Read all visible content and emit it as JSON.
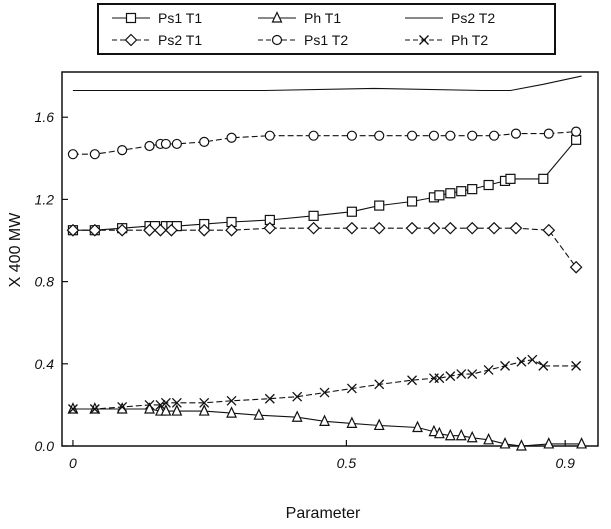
{
  "chart_data": {
    "type": "line",
    "title": "",
    "xlabel": "Parameter",
    "ylabel": "X 400 MW",
    "xlim": [
      -0.02,
      0.96
    ],
    "ylim": [
      0.0,
      1.82
    ],
    "x_ticks": [
      0,
      0.5,
      0.9
    ],
    "x_tick_labels": [
      "0",
      "0.5",
      "0.9"
    ],
    "y_ticks": [
      0.0,
      0.4,
      0.8,
      1.2,
      1.6
    ],
    "y_tick_labels": [
      "0.0",
      "0.4",
      "0.8",
      "1.2",
      "1.6"
    ],
    "grid": false,
    "legend_position": "top",
    "series": [
      {
        "name": "Ps1 T1",
        "marker": "square",
        "line": "solid",
        "points": [
          [
            0,
            1.05
          ],
          [
            0.04,
            1.05
          ],
          [
            0.09,
            1.06
          ],
          [
            0.14,
            1.07
          ],
          [
            0.15,
            1.07
          ],
          [
            0.17,
            1.07
          ],
          [
            0.18,
            1.07
          ],
          [
            0.19,
            1.07
          ],
          [
            0.24,
            1.08
          ],
          [
            0.29,
            1.09
          ],
          [
            0.36,
            1.1
          ],
          [
            0.44,
            1.12
          ],
          [
            0.51,
            1.14
          ],
          [
            0.56,
            1.17
          ],
          [
            0.62,
            1.19
          ],
          [
            0.66,
            1.21
          ],
          [
            0.67,
            1.22
          ],
          [
            0.69,
            1.23
          ],
          [
            0.71,
            1.24
          ],
          [
            0.73,
            1.25
          ],
          [
            0.76,
            1.27
          ],
          [
            0.79,
            1.29
          ],
          [
            0.8,
            1.3
          ],
          [
            0.86,
            1.3
          ],
          [
            0.92,
            1.49
          ]
        ]
      },
      {
        "name": "Ph T1",
        "marker": "triangle",
        "line": "solid",
        "points": [
          [
            0,
            0.18
          ],
          [
            0.04,
            0.18
          ],
          [
            0.09,
            0.18
          ],
          [
            0.14,
            0.18
          ],
          [
            0.16,
            0.17
          ],
          [
            0.17,
            0.17
          ],
          [
            0.19,
            0.17
          ],
          [
            0.24,
            0.17
          ],
          [
            0.29,
            0.16
          ],
          [
            0.34,
            0.15
          ],
          [
            0.41,
            0.14
          ],
          [
            0.46,
            0.12
          ],
          [
            0.51,
            0.11
          ],
          [
            0.56,
            0.1
          ],
          [
            0.63,
            0.09
          ],
          [
            0.66,
            0.07
          ],
          [
            0.67,
            0.06
          ],
          [
            0.69,
            0.05
          ],
          [
            0.71,
            0.05
          ],
          [
            0.73,
            0.04
          ],
          [
            0.76,
            0.03
          ],
          [
            0.79,
            0.01
          ],
          [
            0.82,
            0.0
          ],
          [
            0.87,
            0.01
          ],
          [
            0.93,
            0.01
          ]
        ]
      },
      {
        "name": "Ps2 T2",
        "marker": "none",
        "line": "solid",
        "points": [
          [
            0,
            1.73
          ],
          [
            0.2,
            1.73
          ],
          [
            0.29,
            1.73
          ],
          [
            0.35,
            1.73
          ],
          [
            0.55,
            1.74
          ],
          [
            0.75,
            1.73
          ],
          [
            0.8,
            1.73
          ],
          [
            0.86,
            1.76
          ],
          [
            0.93,
            1.8
          ]
        ]
      },
      {
        "name": "Ps2 T1",
        "marker": "diamond",
        "line": "dashed",
        "points": [
          [
            0,
            1.05
          ],
          [
            0.04,
            1.05
          ],
          [
            0.09,
            1.05
          ],
          [
            0.14,
            1.05
          ],
          [
            0.16,
            1.05
          ],
          [
            0.18,
            1.05
          ],
          [
            0.24,
            1.05
          ],
          [
            0.29,
            1.05
          ],
          [
            0.36,
            1.06
          ],
          [
            0.44,
            1.06
          ],
          [
            0.51,
            1.06
          ],
          [
            0.56,
            1.06
          ],
          [
            0.62,
            1.06
          ],
          [
            0.66,
            1.06
          ],
          [
            0.69,
            1.06
          ],
          [
            0.73,
            1.06
          ],
          [
            0.77,
            1.06
          ],
          [
            0.81,
            1.06
          ],
          [
            0.87,
            1.05
          ],
          [
            0.92,
            0.87
          ]
        ]
      },
      {
        "name": "Ps1 T2",
        "marker": "circle",
        "line": "dashed",
        "points": [
          [
            0,
            1.42
          ],
          [
            0.04,
            1.42
          ],
          [
            0.09,
            1.44
          ],
          [
            0.14,
            1.46
          ],
          [
            0.16,
            1.47
          ],
          [
            0.17,
            1.47
          ],
          [
            0.19,
            1.47
          ],
          [
            0.24,
            1.48
          ],
          [
            0.29,
            1.5
          ],
          [
            0.36,
            1.51
          ],
          [
            0.44,
            1.51
          ],
          [
            0.51,
            1.51
          ],
          [
            0.56,
            1.51
          ],
          [
            0.62,
            1.51
          ],
          [
            0.66,
            1.51
          ],
          [
            0.69,
            1.51
          ],
          [
            0.73,
            1.51
          ],
          [
            0.77,
            1.51
          ],
          [
            0.81,
            1.52
          ],
          [
            0.87,
            1.52
          ],
          [
            0.92,
            1.53
          ]
        ]
      },
      {
        "name": "Ph T2",
        "marker": "cross",
        "line": "dashed",
        "points": [
          [
            0,
            0.18
          ],
          [
            0.04,
            0.18
          ],
          [
            0.09,
            0.19
          ],
          [
            0.14,
            0.2
          ],
          [
            0.16,
            0.2
          ],
          [
            0.17,
            0.21
          ],
          [
            0.19,
            0.21
          ],
          [
            0.24,
            0.21
          ],
          [
            0.29,
            0.22
          ],
          [
            0.36,
            0.23
          ],
          [
            0.41,
            0.24
          ],
          [
            0.46,
            0.26
          ],
          [
            0.51,
            0.28
          ],
          [
            0.56,
            0.3
          ],
          [
            0.62,
            0.32
          ],
          [
            0.66,
            0.33
          ],
          [
            0.67,
            0.33
          ],
          [
            0.69,
            0.34
          ],
          [
            0.71,
            0.35
          ],
          [
            0.73,
            0.35
          ],
          [
            0.76,
            0.37
          ],
          [
            0.79,
            0.39
          ],
          [
            0.82,
            0.41
          ],
          [
            0.84,
            0.42
          ],
          [
            0.86,
            0.39
          ],
          [
            0.92,
            0.39
          ]
        ]
      }
    ],
    "legend_rows": [
      [
        "Ps1 T1",
        "Ph T1",
        "Ps2 T2"
      ],
      [
        "Ps2 T1",
        "Ps1 T2",
        "Ph T2"
      ]
    ]
  }
}
